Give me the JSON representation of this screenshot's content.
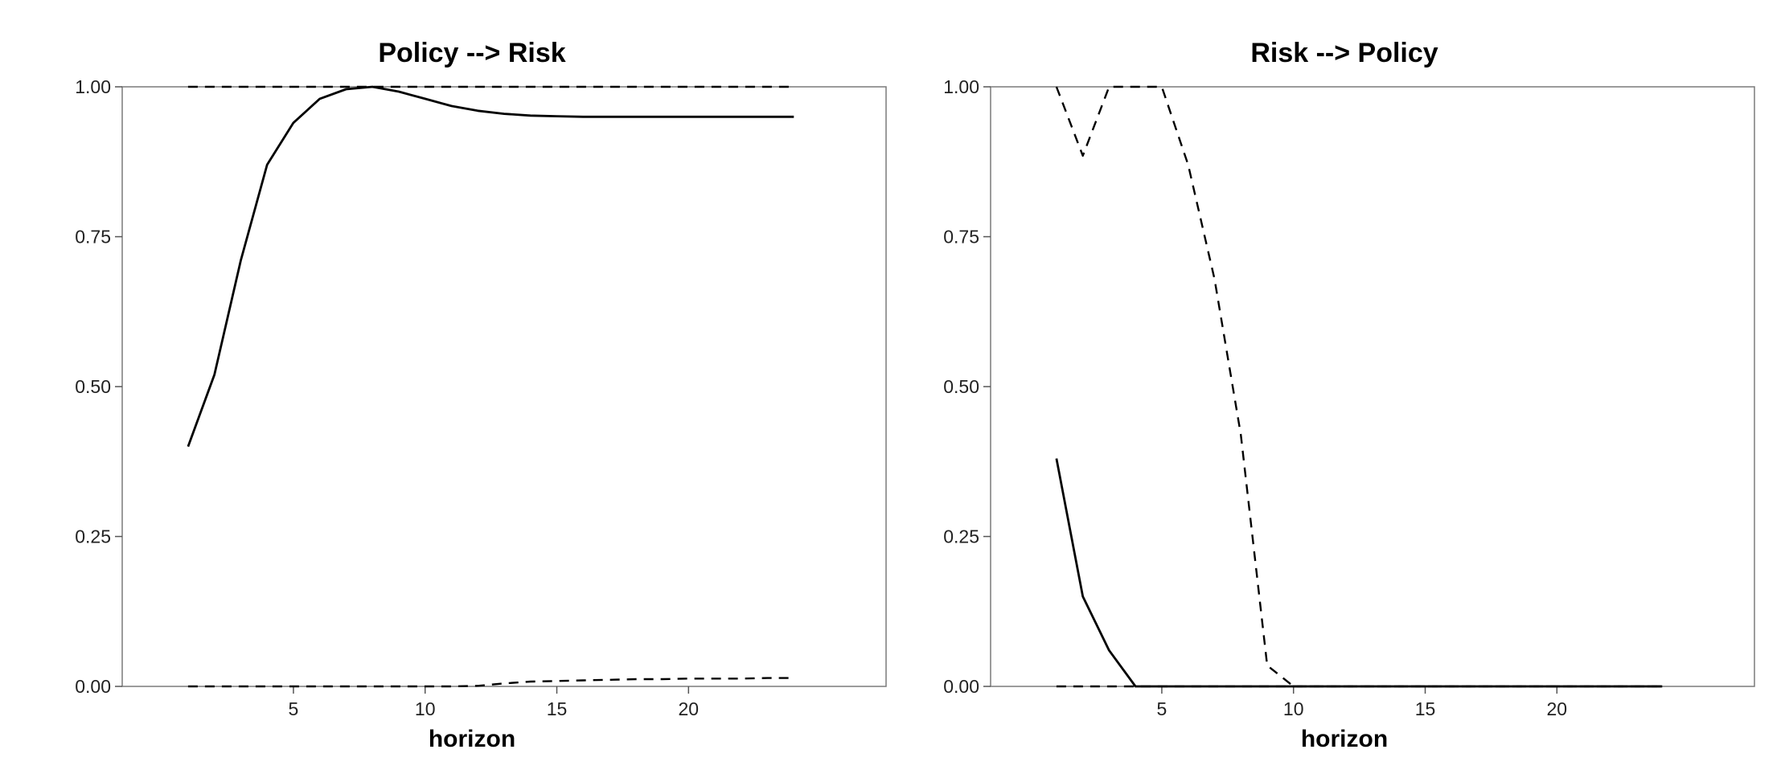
{
  "chart_data": [
    {
      "type": "line",
      "title": "Policy --> Risk",
      "xlabel": "horizon",
      "ylabel": "",
      "xlim": [
        -1.5,
        27.5
      ],
      "ylim": [
        0,
        1
      ],
      "xticks": [
        5,
        10,
        15,
        20
      ],
      "yticks": [
        0,
        0.25,
        0.5,
        0.75,
        1
      ],
      "ytick_labels": [
        "0.00",
        "0.25",
        "0.50",
        "0.75",
        "1.00"
      ],
      "grid": false,
      "series": [
        {
          "style": "solid",
          "x": [
            1,
            2,
            3,
            4,
            5,
            6,
            7,
            8,
            9,
            10,
            11,
            12,
            13,
            14,
            15,
            16,
            17,
            18,
            19,
            20,
            21,
            22,
            23,
            24
          ],
          "y": [
            0.4,
            0.52,
            0.71,
            0.87,
            0.94,
            0.98,
            0.996,
            1.0,
            0.992,
            0.98,
            0.968,
            0.96,
            0.955,
            0.952,
            0.951,
            0.95,
            0.95,
            0.95,
            0.95,
            0.95,
            0.95,
            0.95,
            0.95,
            0.95
          ]
        },
        {
          "style": "dashed",
          "x": [
            1,
            2,
            3,
            4,
            5,
            6,
            7,
            8,
            9,
            10,
            11,
            12,
            13,
            14,
            15,
            16,
            17,
            18,
            19,
            20,
            21,
            22,
            23,
            24
          ],
          "y": [
            1,
            1,
            1,
            1,
            1,
            1,
            1,
            1,
            1,
            1,
            1,
            1,
            1,
            1,
            1,
            1,
            1,
            1,
            1,
            1,
            1,
            1,
            1,
            1
          ]
        },
        {
          "style": "dashed",
          "x": [
            1,
            2,
            3,
            4,
            5,
            6,
            7,
            8,
            9,
            10,
            11,
            12,
            13,
            14,
            15,
            16,
            17,
            18,
            19,
            20,
            21,
            22,
            23,
            24
          ],
          "y": [
            0,
            0,
            0,
            0,
            0,
            0,
            0,
            0,
            0,
            0,
            0,
            0.001,
            0.005,
            0.008,
            0.009,
            0.01,
            0.011,
            0.012,
            0.012,
            0.013,
            0.013,
            0.013,
            0.014,
            0.014
          ]
        }
      ]
    },
    {
      "type": "line",
      "title": "Risk --> Policy",
      "xlabel": "horizon",
      "ylabel": "",
      "xlim": [
        -1.5,
        27.5
      ],
      "ylim": [
        0,
        1
      ],
      "xticks": [
        5,
        10,
        15,
        20
      ],
      "yticks": [
        0,
        0.25,
        0.5,
        0.75,
        1
      ],
      "ytick_labels": [
        "0.00",
        "0.25",
        "0.50",
        "0.75",
        "1.00"
      ],
      "grid": false,
      "series": [
        {
          "style": "solid",
          "x": [
            1,
            2,
            3,
            4,
            5,
            6,
            7,
            8,
            9,
            10,
            11,
            12,
            13,
            14,
            15,
            16,
            17,
            18,
            19,
            20,
            21,
            22,
            23,
            24
          ],
          "y": [
            0.38,
            0.15,
            0.06,
            0,
            0,
            0,
            0,
            0,
            0,
            0,
            0,
            0,
            0,
            0,
            0,
            0,
            0,
            0,
            0,
            0,
            0,
            0,
            0,
            0
          ]
        },
        {
          "style": "dashed",
          "x": [
            1,
            2,
            3,
            4,
            5,
            6,
            7,
            8,
            9,
            10,
            11,
            12,
            13,
            14,
            15,
            16,
            17,
            18,
            19,
            20,
            21,
            22,
            23,
            24
          ],
          "y": [
            1.0,
            0.885,
            1.0,
            1.0,
            1.0,
            0.87,
            0.68,
            0.42,
            0.035,
            0.0,
            0,
            0,
            0,
            0,
            0,
            0,
            0,
            0,
            0,
            0,
            0,
            0,
            0,
            0
          ]
        },
        {
          "style": "dashed",
          "x": [
            1,
            2,
            3,
            4,
            5,
            6,
            7,
            8,
            9,
            10,
            11,
            12,
            13,
            14,
            15,
            16,
            17,
            18,
            19,
            20,
            21,
            22,
            23,
            24
          ],
          "y": [
            0,
            0,
            0,
            0,
            0,
            0,
            0,
            0,
            0,
            0,
            0,
            0,
            0,
            0,
            0,
            0,
            0,
            0,
            0,
            0,
            0,
            0,
            0,
            0
          ]
        }
      ]
    }
  ]
}
